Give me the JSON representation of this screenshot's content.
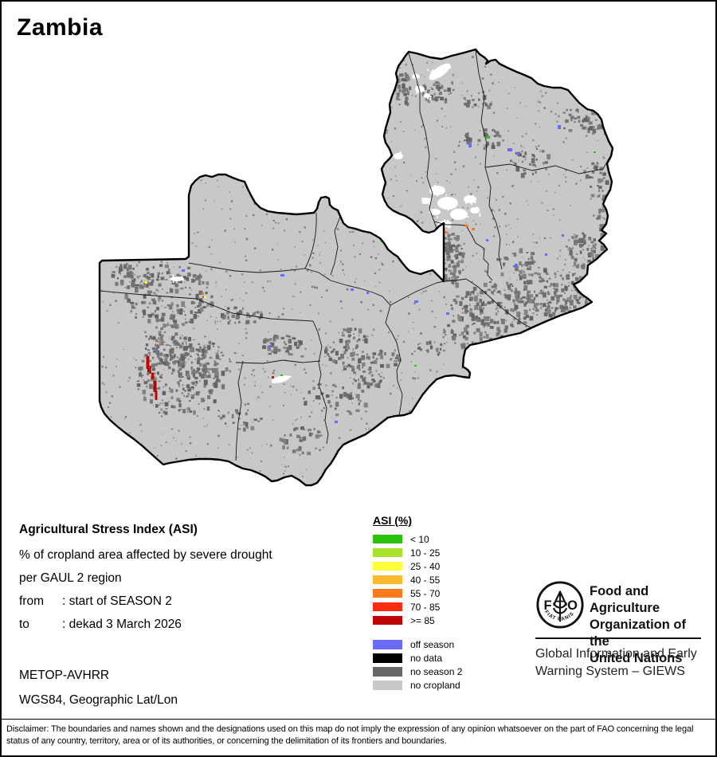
{
  "title": "Zambia",
  "info": {
    "heading": "Agricultural Stress Index (ASI)",
    "subtitle": "% of cropland area affected by severe drought",
    "region_line": "per GAUL 2 region",
    "from_label": "from",
    "from_value": ": start of SEASON 2",
    "to_label": "to",
    "to_value": ": dekad 3 March 2026",
    "sensor": "METOP-AVHRR",
    "projection": "WGS84, Geographic Lat/Lon"
  },
  "legend": {
    "title": "ASI (%)",
    "classes": [
      {
        "label": "< 10",
        "color": "#2dc20d"
      },
      {
        "label": "10 - 25",
        "color": "#a8e22c"
      },
      {
        "label": "25 - 40",
        "color": "#ffff3a"
      },
      {
        "label": "40 - 55",
        "color": "#ffb92e"
      },
      {
        "label": "55 - 70",
        "color": "#fd7a1c"
      },
      {
        "label": "70 - 85",
        "color": "#fd2c10"
      },
      {
        "label": ">= 85",
        "color": "#c00505"
      }
    ],
    "extra_classes": [
      {
        "label": "off season",
        "color": "#6a6afc"
      },
      {
        "label": "no data",
        "color": "#000000"
      },
      {
        "label": "no season 2",
        "color": "#666666"
      },
      {
        "label": "no cropland",
        "color": "#c9c9c9"
      }
    ]
  },
  "map_colors": {
    "land": "#c8c8c8",
    "speckle": "#6e6e6e",
    "border": "#000000",
    "severe_marker": "#c00505"
  },
  "org": {
    "logo_letters": {
      "f": "F",
      "a": "A",
      "o": "O"
    },
    "logo_motto": "FIAT      PANIS",
    "name_lines": [
      "Food and Agriculture",
      "Organization of the",
      "United Nations"
    ],
    "subunit_lines": [
      "Global Information and Early",
      "Warning System – GIEWS"
    ]
  },
  "footer": {
    "disclaimer": "Disclaimer: The boundaries and names shown and the designations used on this map do not imply the expression of any opinion whatsoever on the part of FAO concerning the legal status of any country, territory, area or of its authorities, or concerning the delimitation of its frontiers and boundaries."
  }
}
